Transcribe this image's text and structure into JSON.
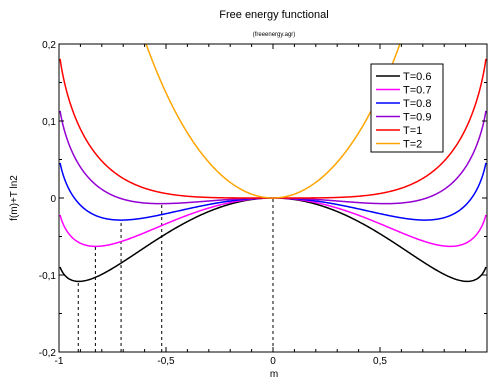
{
  "chart_data": {
    "type": "line",
    "title": "Free energy functional",
    "subtitle": "(freeenergy.agr)",
    "xlabel": "m",
    "ylabel": "f(m)+T ln2",
    "xlim": [
      -1,
      1
    ],
    "ylim": [
      -0.2,
      0.2
    ],
    "x_ticks": [
      -1,
      -0.5,
      0,
      0.5
    ],
    "x_tick_labels": [
      "-1",
      "-0,5",
      "0",
      "0,5"
    ],
    "y_ticks": [
      -0.2,
      -0.1,
      0,
      0.1,
      0.2
    ],
    "y_tick_labels": [
      "-0,2",
      "-0,1",
      "0",
      "0,1",
      "0,2"
    ],
    "legend_position": "top-right",
    "grid": false,
    "series": [
      {
        "name": "T=0.6",
        "T": 0.6,
        "color": "#000000",
        "x": [
          -0.99,
          -0.95,
          -0.91,
          -0.85,
          -0.7,
          -0.5,
          -0.3,
          -0.1,
          0,
          0.1,
          0.3,
          0.5,
          0.7,
          0.85,
          0.91,
          0.95,
          0.99
        ],
        "y": [
          -0.096,
          -0.106,
          -0.109,
          -0.105,
          -0.083,
          -0.052,
          -0.022,
          -0.003,
          0,
          -0.003,
          -0.022,
          -0.052,
          -0.083,
          -0.105,
          -0.109,
          -0.106,
          -0.096
        ]
      },
      {
        "name": "T=0.7",
        "T": 0.7,
        "color": "#ff00ff",
        "x": [
          -0.99,
          -0.95,
          -0.9,
          -0.83,
          -0.7,
          -0.5,
          -0.3,
          -0.1,
          0,
          0.1,
          0.3,
          0.5,
          0.7,
          0.83,
          0.9,
          0.95,
          0.99
        ],
        "y": [
          -0.036,
          -0.053,
          -0.06,
          -0.063,
          -0.058,
          -0.037,
          -0.014,
          -0.002,
          0,
          -0.002,
          -0.014,
          -0.037,
          -0.058,
          -0.063,
          -0.06,
          -0.053,
          -0.036
        ]
      },
      {
        "name": "T=0.8",
        "T": 0.8,
        "color": "#0000ff",
        "x": [
          -0.99,
          -0.9,
          -0.8,
          -0.71,
          -0.6,
          -0.4,
          -0.2,
          0,
          0.2,
          0.4,
          0.6,
          0.71,
          0.8,
          0.9,
          0.99
        ],
        "y": [
          0.027,
          -0.016,
          -0.029,
          -0.031,
          -0.029,
          -0.016,
          -0.004,
          0,
          -0.004,
          -0.016,
          -0.029,
          -0.031,
          -0.029,
          -0.016,
          0.027
        ]
      },
      {
        "name": "T=0.9",
        "T": 0.9,
        "color": "#9400d3",
        "x": [
          -0.99,
          -0.9,
          -0.8,
          -0.7,
          -0.52,
          -0.4,
          -0.2,
          0,
          0.2,
          0.4,
          0.52,
          0.7,
          0.8,
          0.9,
          0.99
        ],
        "y": [
          0.091,
          0.029,
          0.007,
          -0.004,
          -0.009,
          -0.007,
          -0.002,
          0,
          -0.002,
          -0.007,
          -0.009,
          -0.004,
          0.007,
          0.029,
          0.091
        ]
      },
      {
        "name": "T=1",
        "T": 1.0,
        "color": "#ff0000",
        "x": [
          -0.99,
          -0.9,
          -0.8,
          -0.6,
          -0.4,
          -0.2,
          0,
          0.2,
          0.4,
          0.6,
          0.8,
          0.9,
          0.99
        ],
        "y": [
          0.155,
          0.093,
          0.069,
          0.034,
          0.014,
          0.003,
          0,
          0.003,
          0.014,
          0.034,
          0.069,
          0.093,
          0.155
        ]
      },
      {
        "name": "T=2",
        "T": 2.0,
        "color": "#ffa500",
        "x": [
          -0.8,
          -0.7,
          -0.6,
          -0.5,
          -0.4,
          -0.3,
          -0.2,
          -0.1,
          0,
          0.1,
          0.2,
          0.3,
          0.4,
          0.5,
          0.6
        ],
        "y": [
          0.207,
          0.167,
          0.125,
          0.088,
          0.056,
          0.031,
          0.014,
          0.003,
          0,
          0.003,
          0.014,
          0.031,
          0.056,
          0.088,
          0.125
        ]
      }
    ],
    "annotations": [
      {
        "type": "vline-dashed",
        "x": -0.91,
        "y_from": -0.2,
        "y_to": -0.109
      },
      {
        "type": "vline-dashed",
        "x": -0.83,
        "y_from": -0.2,
        "y_to": -0.063
      },
      {
        "type": "vline-dashed",
        "x": -0.71,
        "y_from": -0.2,
        "y_to": -0.031
      },
      {
        "type": "vline-dashed",
        "x": -0.52,
        "y_from": -0.2,
        "y_to": -0.009
      },
      {
        "type": "vline-dashed",
        "x": 0,
        "y_from": -0.2,
        "y_to": 0
      }
    ]
  }
}
